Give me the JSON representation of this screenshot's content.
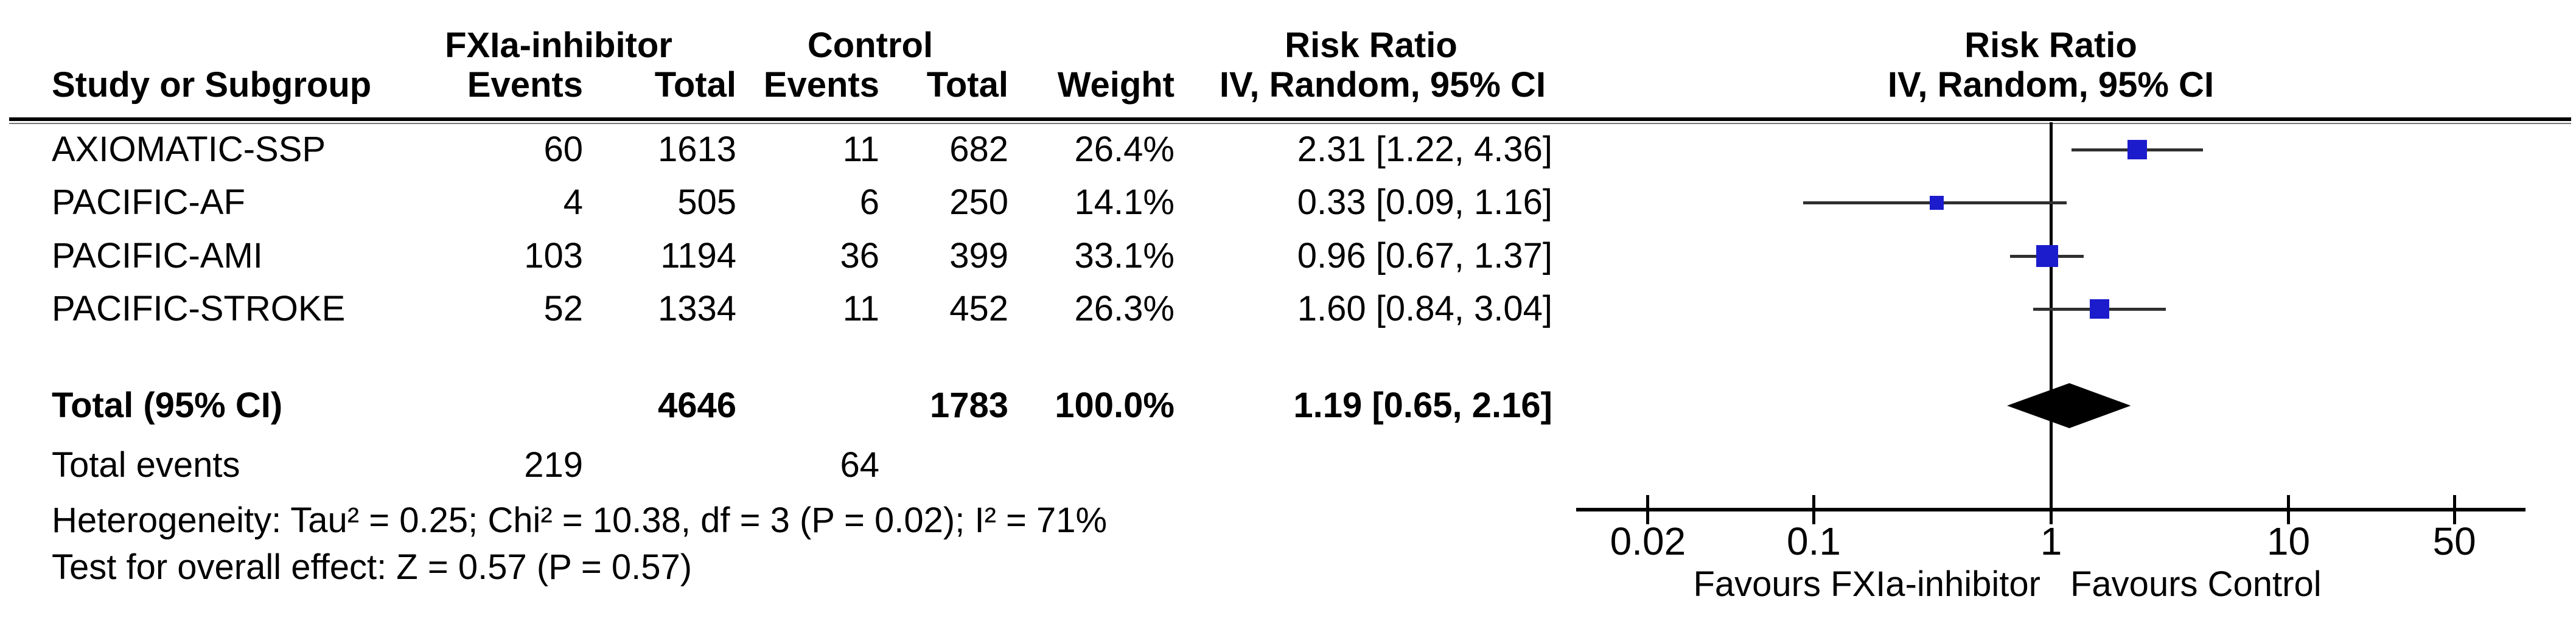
{
  "table": {
    "group1_label": "FXIa-inhibitor",
    "group2_label": "Control",
    "effect_label": "Risk Ratio",
    "method_label": "IV, Random, 95% CI",
    "col_study": "Study or Subgroup",
    "col_events": "Events",
    "col_total": "Total",
    "col_weight": "Weight"
  },
  "chart_data": {
    "type": "forest",
    "effect_measure": "Risk Ratio",
    "model": "IV, Random, 95% CI",
    "studies": [
      {
        "name": "AXIOMATIC-SSP",
        "events_trt": "60",
        "total_trt": "1613",
        "events_ctl": "11",
        "total_ctl": "682",
        "weight": "26.4%",
        "weight_pct": 26.4,
        "rr": 2.31,
        "ci_lo": 1.22,
        "ci_hi": 4.36,
        "ci_label": "2.31 [1.22, 4.36]"
      },
      {
        "name": "PACIFIC-AF",
        "events_trt": "4",
        "total_trt": "505",
        "events_ctl": "6",
        "total_ctl": "250",
        "weight": "14.1%",
        "weight_pct": 14.1,
        "rr": 0.33,
        "ci_lo": 0.09,
        "ci_hi": 1.16,
        "ci_label": "0.33 [0.09, 1.16]"
      },
      {
        "name": "PACIFIC-AMI",
        "events_trt": "103",
        "total_trt": "1194",
        "events_ctl": "36",
        "total_ctl": "399",
        "weight": "33.1%",
        "weight_pct": 33.1,
        "rr": 0.96,
        "ci_lo": 0.67,
        "ci_hi": 1.37,
        "ci_label": "0.96 [0.67, 1.37]"
      },
      {
        "name": "PACIFIC-STROKE",
        "events_trt": "52",
        "total_trt": "1334",
        "events_ctl": "11",
        "total_ctl": "452",
        "weight": "26.3%",
        "weight_pct": 26.3,
        "rr": 1.6,
        "ci_lo": 0.84,
        "ci_hi": 3.04,
        "ci_label": "1.60 [0.84, 3.04]"
      }
    ],
    "total": {
      "name": "Total (95% CI)",
      "total_trt": "4646",
      "total_ctl": "1783",
      "weight": "100.0%",
      "rr": 1.19,
      "ci_lo": 0.65,
      "ci_hi": 2.16,
      "ci_label": "1.19 [0.65, 2.16]"
    },
    "total_events": {
      "label": "Total events",
      "trt": "219",
      "ctl": "64"
    },
    "heterogeneity": "Heterogeneity: Tau² = 0.25; Chi² = 10.38, df = 3 (P = 0.02); I² = 71%",
    "overall_effect": "Test for overall effect: Z = 0.57 (P = 0.57)",
    "axis": {
      "scale": "log",
      "ticks": [
        0.02,
        0.1,
        1,
        10,
        50
      ],
      "tick_labels": [
        "0.02",
        "0.1",
        "1",
        "10",
        "50"
      ],
      "xlim": [
        0.02,
        50
      ]
    },
    "favours_left": "Favours FXIa-inhibitor",
    "favours_right": "Favours Control",
    "colors": {
      "square": "#1c1ccd",
      "diamond": "#000000",
      "ci_line": "#303030",
      "axis": "#000000",
      "text": "#000000"
    }
  }
}
